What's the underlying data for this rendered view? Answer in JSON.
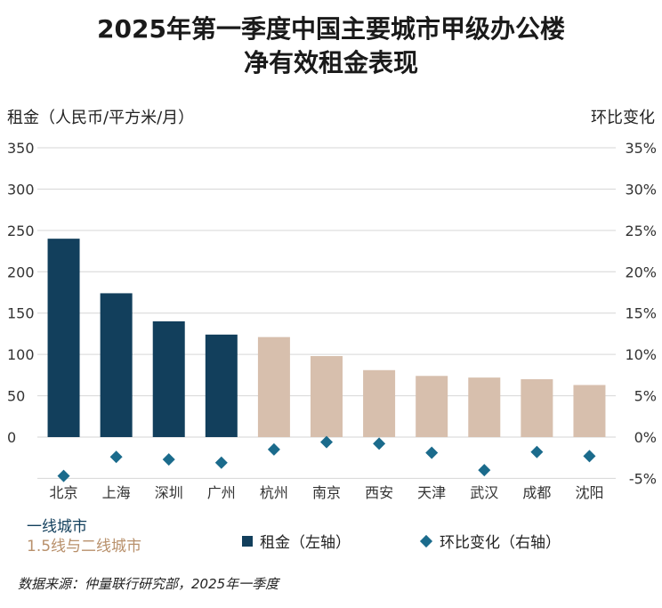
{
  "title_line1": "2025年第一季度中国主要城市甲级办公楼",
  "title_line2": "净有效租金表现",
  "colors": {
    "tier1": "#123f5c",
    "tier2": "#d7bfad",
    "tier2_text": "#b8906b",
    "marker": "#1b6b8c",
    "grid": "#d6d6d6"
  },
  "chart_data": {
    "type": "bar",
    "categories": [
      "北京",
      "上海",
      "深圳",
      "广州",
      "杭州",
      "南京",
      "西安",
      "天津",
      "武汉",
      "成都",
      "沈阳"
    ],
    "tiers": [
      "tier1",
      "tier1",
      "tier1",
      "tier1",
      "tier2",
      "tier2",
      "tier2",
      "tier2",
      "tier2",
      "tier2",
      "tier2"
    ],
    "series": [
      {
        "name": "租金（左轴）",
        "type": "bar",
        "axis": "left",
        "values": [
          240,
          174,
          140,
          124,
          121,
          98,
          81,
          74,
          72,
          70,
          63
        ]
      },
      {
        "name": "环比变化（右轴）",
        "type": "scatter",
        "axis": "right",
        "values": [
          -4.7,
          -2.4,
          -2.7,
          -3.1,
          -1.5,
          -0.6,
          -0.8,
          -1.9,
          -4.0,
          -1.8,
          -2.3
        ]
      }
    ],
    "ylabel_left": "租金（人民币/平方米/月）",
    "ylabel_right": "环比变化",
    "ylim_left": [
      -50,
      350
    ],
    "ylim_right": [
      -5,
      35
    ],
    "yticks_left": [
      "350",
      "300",
      "250",
      "200",
      "150",
      "100",
      "50",
      "0"
    ],
    "yticks_right": [
      "35%",
      "30%",
      "25%",
      "20%",
      "15%",
      "10%",
      "5%",
      "0%",
      "-5%"
    ]
  },
  "legend": {
    "tier1_label": "一线城市",
    "tier2_label": "1.5线与二线城市",
    "rent_label": "租金（左轴）",
    "change_label": "环比变化（右轴）"
  },
  "source": "数据来源：仲量联行研究部，2025年一季度"
}
